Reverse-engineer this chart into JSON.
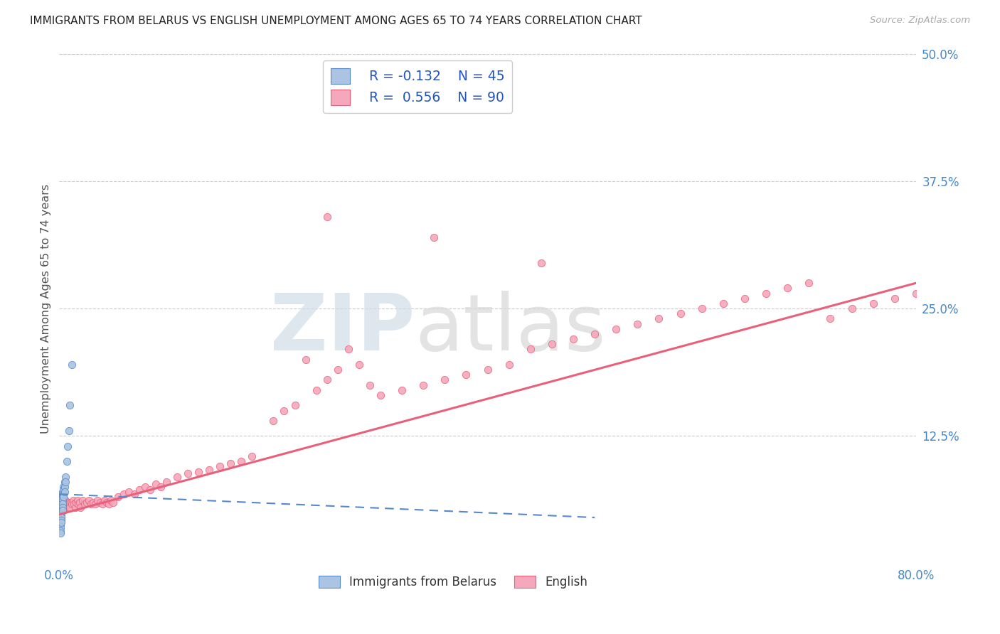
{
  "title": "IMMIGRANTS FROM BELARUS VS ENGLISH UNEMPLOYMENT AMONG AGES 65 TO 74 YEARS CORRELATION CHART",
  "source": "Source: ZipAtlas.com",
  "ylabel": "Unemployment Among Ages 65 to 74 years",
  "watermark_zip": "ZIP",
  "watermark_atlas": "atlas",
  "xlim": [
    0.0,
    0.8
  ],
  "ylim": [
    0.0,
    0.5
  ],
  "xtick_labels": [
    "0.0%",
    "",
    "",
    "",
    "80.0%"
  ],
  "xtick_vals": [
    0.0,
    0.2,
    0.4,
    0.6,
    0.8
  ],
  "ytick_labels_right": [
    "50.0%",
    "37.5%",
    "25.0%",
    "12.5%"
  ],
  "ytick_vals_right": [
    0.5,
    0.375,
    0.25,
    0.125
  ],
  "legend_line1": "R = -0.132   N = 45",
  "legend_line2": "R =  0.556   N = 90",
  "color_belarus": "#aac4e2",
  "color_english": "#f5a8bc",
  "color_trend_belarus": "#5588cc",
  "color_trend_english": "#e8607a",
  "color_axis_labels": "#4488cc",
  "background_color": "#ffffff",
  "scatter_size": 55,
  "eng_trend_x0": 0.0,
  "eng_trend_y0": 0.048,
  "eng_trend_x1": 0.8,
  "eng_trend_y1": 0.275,
  "bel_trend_x0": 0.0,
  "bel_trend_y0": 0.068,
  "bel_trend_x1": 0.5,
  "bel_trend_y1": 0.045,
  "belarus_x": [
    0.001,
    0.001,
    0.001,
    0.001,
    0.001,
    0.001,
    0.001,
    0.001,
    0.001,
    0.001,
    0.001,
    0.001,
    0.001,
    0.002,
    0.002,
    0.002,
    0.002,
    0.002,
    0.002,
    0.002,
    0.002,
    0.002,
    0.002,
    0.002,
    0.003,
    0.003,
    0.003,
    0.003,
    0.003,
    0.003,
    0.003,
    0.004,
    0.004,
    0.004,
    0.004,
    0.005,
    0.005,
    0.005,
    0.006,
    0.006,
    0.007,
    0.008,
    0.009,
    0.01,
    0.012
  ],
  "belarus_y": [
    0.06,
    0.058,
    0.055,
    0.053,
    0.05,
    0.048,
    0.045,
    0.042,
    0.04,
    0.038,
    0.035,
    0.032,
    0.03,
    0.065,
    0.062,
    0.06,
    0.058,
    0.055,
    0.052,
    0.05,
    0.048,
    0.045,
    0.042,
    0.04,
    0.07,
    0.067,
    0.065,
    0.062,
    0.058,
    0.055,
    0.052,
    0.075,
    0.072,
    0.068,
    0.065,
    0.08,
    0.075,
    0.07,
    0.085,
    0.08,
    0.1,
    0.115,
    0.13,
    0.155,
    0.195
  ],
  "english_x": [
    0.003,
    0.004,
    0.005,
    0.006,
    0.007,
    0.008,
    0.009,
    0.01,
    0.011,
    0.012,
    0.013,
    0.014,
    0.015,
    0.016,
    0.017,
    0.018,
    0.019,
    0.02,
    0.022,
    0.024,
    0.026,
    0.028,
    0.03,
    0.032,
    0.034,
    0.036,
    0.038,
    0.04,
    0.042,
    0.044,
    0.046,
    0.048,
    0.05,
    0.055,
    0.06,
    0.065,
    0.07,
    0.075,
    0.08,
    0.085,
    0.09,
    0.095,
    0.1,
    0.11,
    0.12,
    0.13,
    0.14,
    0.15,
    0.16,
    0.17,
    0.18,
    0.2,
    0.21,
    0.22,
    0.23,
    0.24,
    0.25,
    0.26,
    0.27,
    0.28,
    0.29,
    0.3,
    0.32,
    0.34,
    0.36,
    0.38,
    0.4,
    0.42,
    0.44,
    0.46,
    0.48,
    0.5,
    0.52,
    0.54,
    0.56,
    0.58,
    0.6,
    0.62,
    0.64,
    0.66,
    0.68,
    0.7,
    0.72,
    0.74,
    0.76,
    0.78,
    0.8,
    0.45,
    0.35,
    0.25
  ],
  "english_y": [
    0.058,
    0.06,
    0.055,
    0.062,
    0.058,
    0.06,
    0.058,
    0.055,
    0.06,
    0.058,
    0.062,
    0.058,
    0.055,
    0.06,
    0.062,
    0.058,
    0.06,
    0.055,
    0.062,
    0.058,
    0.06,
    0.062,
    0.058,
    0.06,
    0.058,
    0.062,
    0.06,
    0.058,
    0.062,
    0.06,
    0.058,
    0.062,
    0.06,
    0.065,
    0.068,
    0.07,
    0.068,
    0.072,
    0.075,
    0.072,
    0.078,
    0.075,
    0.08,
    0.085,
    0.088,
    0.09,
    0.092,
    0.095,
    0.098,
    0.1,
    0.105,
    0.14,
    0.15,
    0.155,
    0.2,
    0.17,
    0.18,
    0.19,
    0.21,
    0.195,
    0.175,
    0.165,
    0.17,
    0.175,
    0.18,
    0.185,
    0.19,
    0.195,
    0.21,
    0.215,
    0.22,
    0.225,
    0.23,
    0.235,
    0.24,
    0.245,
    0.25,
    0.255,
    0.26,
    0.265,
    0.27,
    0.275,
    0.24,
    0.25,
    0.255,
    0.26,
    0.265,
    0.295,
    0.32,
    0.34
  ]
}
